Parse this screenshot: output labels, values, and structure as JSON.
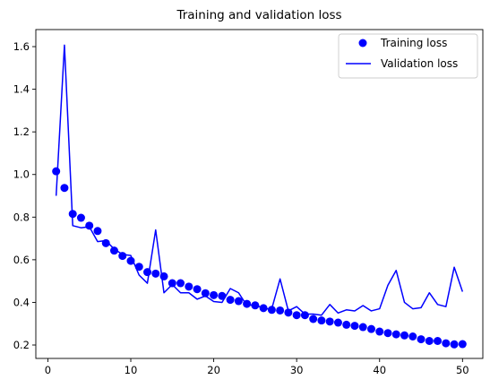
{
  "chart_data": {
    "type": "line",
    "title": "Training and validation loss",
    "xlabel": "",
    "ylabel": "",
    "xlim": [
      -1.45,
      52.45
    ],
    "ylim": [
      0.137,
      1.68
    ],
    "x_ticks": [
      0,
      10,
      20,
      30,
      40,
      50
    ],
    "y_ticks": [
      0.2,
      0.4,
      0.6,
      0.8,
      1.0,
      1.2,
      1.4,
      1.6
    ],
    "y_tick_labels": [
      "0.2",
      "0.4",
      "0.6",
      "0.8",
      "1.0",
      "1.2",
      "1.4",
      "1.6"
    ],
    "grid": false,
    "legend_position": "top-right",
    "x": [
      1,
      2,
      3,
      4,
      5,
      6,
      7,
      8,
      9,
      10,
      11,
      12,
      13,
      14,
      15,
      16,
      17,
      18,
      19,
      20,
      21,
      22,
      23,
      24,
      25,
      26,
      27,
      28,
      29,
      30,
      31,
      32,
      33,
      34,
      35,
      36,
      37,
      38,
      39,
      40,
      41,
      42,
      43,
      44,
      45,
      46,
      47,
      48,
      49,
      50
    ],
    "series": [
      {
        "name": "Training loss",
        "style": "markers",
        "color": "#0000ff",
        "values": [
          1.015,
          0.937,
          0.815,
          0.797,
          0.76,
          0.735,
          0.678,
          0.643,
          0.618,
          0.595,
          0.567,
          0.542,
          0.535,
          0.522,
          0.49,
          0.49,
          0.474,
          0.462,
          0.443,
          0.434,
          0.43,
          0.412,
          0.406,
          0.393,
          0.386,
          0.373,
          0.365,
          0.362,
          0.352,
          0.34,
          0.34,
          0.322,
          0.315,
          0.31,
          0.305,
          0.295,
          0.29,
          0.284,
          0.275,
          0.263,
          0.256,
          0.25,
          0.245,
          0.24,
          0.227,
          0.219,
          0.219,
          0.208,
          0.203,
          0.204
        ]
      },
      {
        "name": "Validation loss",
        "style": "line",
        "color": "#0000ff",
        "values": [
          0.9,
          1.607,
          0.76,
          0.75,
          0.755,
          0.685,
          0.69,
          0.65,
          0.625,
          0.62,
          0.528,
          0.49,
          0.74,
          0.445,
          0.484,
          0.445,
          0.445,
          0.415,
          0.43,
          0.404,
          0.4,
          0.465,
          0.445,
          0.385,
          0.39,
          0.37,
          0.37,
          0.51,
          0.36,
          0.38,
          0.345,
          0.345,
          0.34,
          0.39,
          0.35,
          0.365,
          0.36,
          0.385,
          0.36,
          0.37,
          0.48,
          0.55,
          0.4,
          0.37,
          0.375,
          0.445,
          0.39,
          0.38,
          0.565,
          0.45
        ]
      }
    ]
  }
}
